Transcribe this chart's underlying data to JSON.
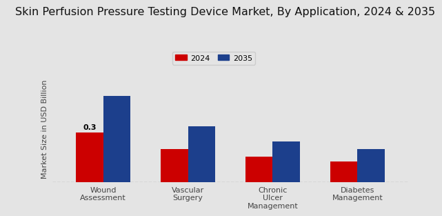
{
  "title": "Skin Perfusion Pressure Testing Device Market, By Application, 2024 & 2035",
  "ylabel": "Market Size in USD Billion",
  "categories": [
    "Wound\nAssessment",
    "Vascular\nSurgery",
    "Chronic\nUlcer\nManagement",
    "Diabetes\nManagement"
  ],
  "values_2024": [
    0.3,
    0.2,
    0.155,
    0.125
  ],
  "values_2035": [
    0.52,
    0.34,
    0.245,
    0.2
  ],
  "color_2024": "#cc0000",
  "color_2035": "#1c3f8c",
  "background_color": "#e4e4e4",
  "annotation_text": "0.3",
  "bar_width": 0.32,
  "ylim": [
    0,
    0.65
  ],
  "legend_labels": [
    "2024",
    "2035"
  ],
  "title_fontsize": 11.5,
  "label_fontsize": 8,
  "tick_fontsize": 8,
  "bottom_bar_color": "#cc0000"
}
